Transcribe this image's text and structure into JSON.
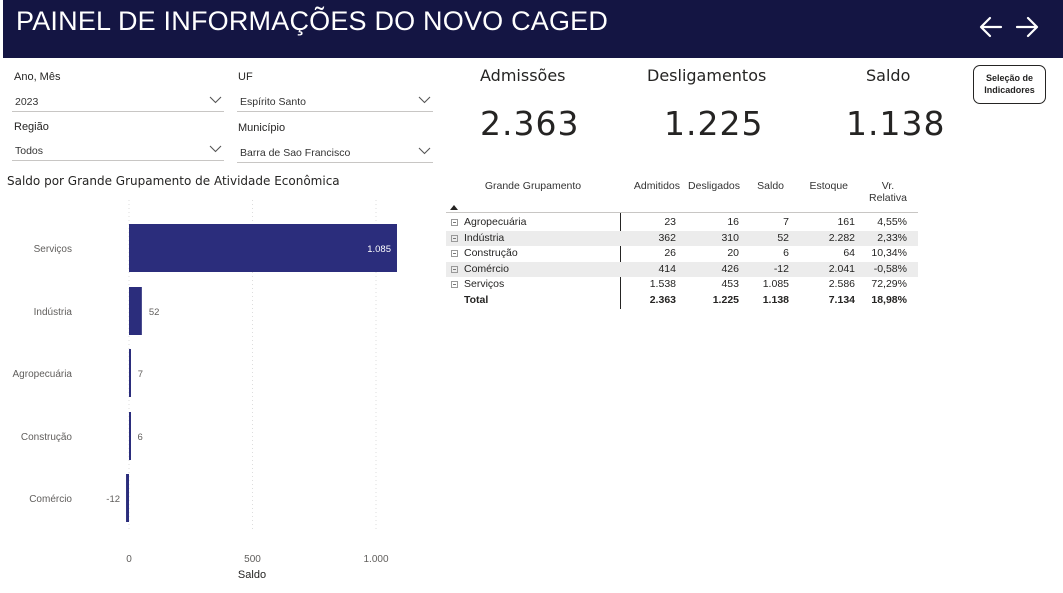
{
  "header": {
    "title": "PAINEL DE INFORMAÇÕES DO NOVO CAGED"
  },
  "filters": {
    "ano_mes": {
      "label": "Ano, Mês",
      "value": "2023"
    },
    "uf": {
      "label": "UF",
      "value": "Espírito Santo"
    },
    "regiao": {
      "label": "Região",
      "value": "Todos"
    },
    "municipio": {
      "label": "Município",
      "value": "Barra de Sao Francisco"
    }
  },
  "cards": {
    "admissoes": {
      "label": "Admissões",
      "value": "2.363"
    },
    "desligamentos": {
      "label": "Desligamentos",
      "value": "1.225"
    },
    "saldo": {
      "label": "Saldo",
      "value": "1.138"
    }
  },
  "selection_button": {
    "line1": "Seleção de",
    "line2": "Indicadores"
  },
  "chart_data": {
    "type": "bar",
    "orientation": "horizontal",
    "title": "Saldo por Grande Grupamento de Atividade Econômica",
    "categories": [
      "Serviços",
      "Indústria",
      "Agropecuária",
      "Construção",
      "Comércio"
    ],
    "values": [
      1085,
      52,
      7,
      6,
      -12
    ],
    "value_labels": [
      "1.085",
      "52",
      "7",
      "6",
      "-12"
    ],
    "xlabel": "Saldo",
    "xlim": [
      -12,
      1100
    ],
    "xticks": [
      0,
      500,
      1000
    ],
    "xtick_labels": [
      "0",
      "500",
      "1.000"
    ],
    "grid": true,
    "bar_color": "#2b2d7c"
  },
  "table": {
    "headers": {
      "grupo": "Grande Grupamento",
      "admitidos": "Admitidos",
      "desligados": "Desligados",
      "saldo": "Saldo",
      "estoque": "Estoque",
      "vr_line1": "Vr.",
      "vr_line2": "Relativa"
    },
    "rows": [
      {
        "name": "Agropecuária",
        "admitidos": "23",
        "desligados": "16",
        "saldo": "7",
        "estoque": "161",
        "vr": "4,55%"
      },
      {
        "name": "Indústria",
        "admitidos": "362",
        "desligados": "310",
        "saldo": "52",
        "estoque": "2.282",
        "vr": "2,33%"
      },
      {
        "name": "Construção",
        "admitidos": "26",
        "desligados": "20",
        "saldo": "6",
        "estoque": "64",
        "vr": "10,34%"
      },
      {
        "name": "Comércio",
        "admitidos": "414",
        "desligados": "426",
        "saldo": "-12",
        "estoque": "2.041",
        "vr": "-0,58%"
      },
      {
        "name": "Serviços",
        "admitidos": "1.538",
        "desligados": "453",
        "saldo": "1.085",
        "estoque": "2.586",
        "vr": "72,29%"
      }
    ],
    "total": {
      "name": "Total",
      "admitidos": "2.363",
      "desligados": "1.225",
      "saldo": "1.138",
      "estoque": "7.134",
      "vr": "18,98%"
    }
  },
  "colors": {
    "header_bg": "#141543",
    "bar": "#2b2d7c"
  }
}
